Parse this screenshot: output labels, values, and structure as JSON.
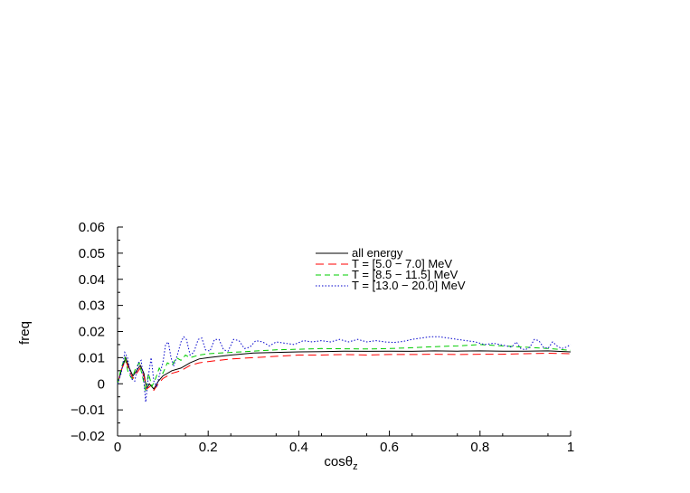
{
  "chart_data": {
    "type": "line",
    "title": "",
    "xlabel": "cosθ",
    "xlabel_sub": "z",
    "ylabel": "freq",
    "xlim": [
      0,
      1
    ],
    "ylim": [
      -0.02,
      0.06
    ],
    "xticks": [
      0,
      0.2,
      0.4,
      0.6,
      0.8,
      1
    ],
    "xtick_labels": [
      "0",
      "0.2",
      "0.4",
      "0.6",
      "0.8",
      "1"
    ],
    "yticks": [
      -0.02,
      -0.01,
      0,
      0.01,
      0.02,
      0.03,
      0.04,
      0.05,
      0.06
    ],
    "ytick_labels": [
      "−0.02",
      "−0.01",
      "0",
      "0.01",
      "0.02",
      "0.03",
      "0.04",
      "0.05",
      "0.06"
    ],
    "grid": false,
    "legend_position": "top-right",
    "series": [
      {
        "name": "all energy",
        "color": "#000000",
        "dash": "solid",
        "points": [
          [
            0.0,
            0.0
          ],
          [
            0.01,
            0.006
          ],
          [
            0.018,
            0.01
          ],
          [
            0.026,
            0.006
          ],
          [
            0.034,
            0.003
          ],
          [
            0.042,
            0.005
          ],
          [
            0.05,
            0.007
          ],
          [
            0.058,
            0.004
          ],
          [
            0.064,
            -0.002
          ],
          [
            0.07,
            0.0
          ],
          [
            0.08,
            -0.002
          ],
          [
            0.09,
            0.001
          ],
          [
            0.1,
            0.003
          ],
          [
            0.12,
            0.005
          ],
          [
            0.14,
            0.006
          ],
          [
            0.16,
            0.008
          ],
          [
            0.18,
            0.0095
          ],
          [
            0.2,
            0.01
          ],
          [
            0.25,
            0.011
          ],
          [
            0.3,
            0.0118
          ],
          [
            0.35,
            0.012
          ],
          [
            0.4,
            0.0122
          ],
          [
            0.45,
            0.0123
          ],
          [
            0.5,
            0.0125
          ],
          [
            0.55,
            0.0124
          ],
          [
            0.6,
            0.0125
          ],
          [
            0.65,
            0.0124
          ],
          [
            0.7,
            0.0126
          ],
          [
            0.75,
            0.0125
          ],
          [
            0.8,
            0.0126
          ],
          [
            0.85,
            0.0125
          ],
          [
            0.9,
            0.0125
          ],
          [
            0.95,
            0.0126
          ],
          [
            1.0,
            0.0122
          ]
        ]
      },
      {
        "name": "T = [5.0 − 7.0] MeV",
        "color": "#ff0000",
        "dash": "long",
        "points": [
          [
            0.0,
            0.0
          ],
          [
            0.01,
            0.006
          ],
          [
            0.018,
            0.009
          ],
          [
            0.026,
            0.005
          ],
          [
            0.034,
            0.002
          ],
          [
            0.042,
            0.004
          ],
          [
            0.05,
            0.006
          ],
          [
            0.058,
            0.003
          ],
          [
            0.064,
            -0.002
          ],
          [
            0.072,
            -0.001
          ],
          [
            0.08,
            -0.0025
          ],
          [
            0.09,
            0.0
          ],
          [
            0.1,
            0.002
          ],
          [
            0.12,
            0.004
          ],
          [
            0.14,
            0.005
          ],
          [
            0.16,
            0.007
          ],
          [
            0.18,
            0.008
          ],
          [
            0.2,
            0.0085
          ],
          [
            0.25,
            0.0095
          ],
          [
            0.3,
            0.01
          ],
          [
            0.35,
            0.0105
          ],
          [
            0.4,
            0.011
          ],
          [
            0.45,
            0.011
          ],
          [
            0.5,
            0.0112
          ],
          [
            0.55,
            0.011
          ],
          [
            0.6,
            0.0112
          ],
          [
            0.65,
            0.0112
          ],
          [
            0.7,
            0.0113
          ],
          [
            0.75,
            0.0112
          ],
          [
            0.8,
            0.0113
          ],
          [
            0.85,
            0.0113
          ],
          [
            0.9,
            0.0115
          ],
          [
            0.95,
            0.0117
          ],
          [
            1.0,
            0.0115
          ]
        ]
      },
      {
        "name": "T = [8.5 − 11.5] MeV",
        "color": "#00cc00",
        "dash": "medium",
        "points": [
          [
            0.0,
            0.0
          ],
          [
            0.008,
            0.006
          ],
          [
            0.016,
            0.01
          ],
          [
            0.024,
            0.004
          ],
          [
            0.032,
            0.002
          ],
          [
            0.04,
            0.006
          ],
          [
            0.048,
            0.008
          ],
          [
            0.056,
            0.002
          ],
          [
            0.062,
            -0.003
          ],
          [
            0.068,
            0.004
          ],
          [
            0.076,
            -0.001
          ],
          [
            0.084,
            0.002
          ],
          [
            0.092,
            0.006
          ],
          [
            0.1,
            0.004
          ],
          [
            0.11,
            0.008
          ],
          [
            0.12,
            0.007
          ],
          [
            0.13,
            0.01
          ],
          [
            0.14,
            0.009
          ],
          [
            0.15,
            0.011
          ],
          [
            0.16,
            0.01
          ],
          [
            0.18,
            0.011
          ],
          [
            0.2,
            0.0115
          ],
          [
            0.25,
            0.012
          ],
          [
            0.3,
            0.0125
          ],
          [
            0.35,
            0.013
          ],
          [
            0.4,
            0.0132
          ],
          [
            0.45,
            0.0135
          ],
          [
            0.5,
            0.0134
          ],
          [
            0.55,
            0.0133
          ],
          [
            0.6,
            0.0135
          ],
          [
            0.65,
            0.0138
          ],
          [
            0.7,
            0.0142
          ],
          [
            0.75,
            0.0145
          ],
          [
            0.8,
            0.015
          ],
          [
            0.85,
            0.0145
          ],
          [
            0.9,
            0.014
          ],
          [
            0.95,
            0.0135
          ],
          [
            1.0,
            0.0128
          ]
        ]
      },
      {
        "name": "T = [13.0 − 20.0] MeV",
        "color": "#0000cc",
        "dash": "dotted",
        "points": [
          [
            0.0,
            0.0
          ],
          [
            0.008,
            0.004
          ],
          [
            0.016,
            0.012
          ],
          [
            0.022,
            0.01
          ],
          [
            0.03,
            0.002
          ],
          [
            0.038,
            0.001
          ],
          [
            0.046,
            0.008
          ],
          [
            0.052,
            0.009
          ],
          [
            0.058,
            0.001
          ],
          [
            0.062,
            -0.007
          ],
          [
            0.068,
            0.003
          ],
          [
            0.074,
            0.01
          ],
          [
            0.08,
            0.001
          ],
          [
            0.086,
            -0.001
          ],
          [
            0.092,
            0.003
          ],
          [
            0.1,
            0.008
          ],
          [
            0.106,
            0.015
          ],
          [
            0.112,
            0.016
          ],
          [
            0.118,
            0.01
          ],
          [
            0.124,
            0.007
          ],
          [
            0.132,
            0.011
          ],
          [
            0.14,
            0.016
          ],
          [
            0.146,
            0.018
          ],
          [
            0.152,
            0.017
          ],
          [
            0.16,
            0.011
          ],
          [
            0.168,
            0.012
          ],
          [
            0.178,
            0.017
          ],
          [
            0.186,
            0.0175
          ],
          [
            0.194,
            0.013
          ],
          [
            0.204,
            0.0125
          ],
          [
            0.214,
            0.017
          ],
          [
            0.224,
            0.017
          ],
          [
            0.234,
            0.013
          ],
          [
            0.244,
            0.0125
          ],
          [
            0.256,
            0.017
          ],
          [
            0.268,
            0.0165
          ],
          [
            0.28,
            0.0135
          ],
          [
            0.292,
            0.014
          ],
          [
            0.305,
            0.0165
          ],
          [
            0.32,
            0.016
          ],
          [
            0.335,
            0.0145
          ],
          [
            0.35,
            0.016
          ],
          [
            0.37,
            0.0155
          ],
          [
            0.39,
            0.015
          ],
          [
            0.41,
            0.0165
          ],
          [
            0.43,
            0.016
          ],
          [
            0.45,
            0.0165
          ],
          [
            0.47,
            0.016
          ],
          [
            0.49,
            0.017
          ],
          [
            0.51,
            0.016
          ],
          [
            0.53,
            0.017
          ],
          [
            0.55,
            0.016
          ],
          [
            0.57,
            0.0165
          ],
          [
            0.59,
            0.016
          ],
          [
            0.61,
            0.0158
          ],
          [
            0.63,
            0.0162
          ],
          [
            0.65,
            0.017
          ],
          [
            0.67,
            0.0175
          ],
          [
            0.69,
            0.018
          ],
          [
            0.71,
            0.018
          ],
          [
            0.73,
            0.0175
          ],
          [
            0.75,
            0.017
          ],
          [
            0.77,
            0.0165
          ],
          [
            0.79,
            0.016
          ],
          [
            0.81,
            0.015
          ],
          [
            0.83,
            0.0155
          ],
          [
            0.85,
            0.0148
          ],
          [
            0.87,
            0.014
          ],
          [
            0.88,
            0.016
          ],
          [
            0.89,
            0.0135
          ],
          [
            0.9,
            0.013
          ],
          [
            0.91,
            0.014
          ],
          [
            0.92,
            0.017
          ],
          [
            0.93,
            0.0165
          ],
          [
            0.94,
            0.014
          ],
          [
            0.95,
            0.0135
          ],
          [
            0.96,
            0.016
          ],
          [
            0.97,
            0.0145
          ],
          [
            0.98,
            0.0135
          ],
          [
            0.99,
            0.014
          ],
          [
            1.0,
            0.015
          ]
        ]
      }
    ]
  }
}
